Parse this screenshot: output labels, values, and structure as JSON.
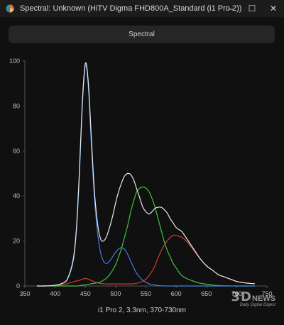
{
  "window": {
    "title": "Spectral: Unknown (HiTV Digma FHD800A_Standard (i1 Pro 2))",
    "minimize_glyph": "–",
    "maximize_glyph": "☐",
    "close_glyph": "✕"
  },
  "tab": {
    "label": "Spectral"
  },
  "watermark": {
    "logo": "3D",
    "news": "NEWS",
    "tagline": "Daily Digital Digest"
  },
  "chart_data": {
    "type": "line",
    "xlabel": "i1 Pro 2, 3.3nm, 370-730nm",
    "ylabel": "",
    "xlim": [
      350,
      750
    ],
    "ylim": [
      0,
      100
    ],
    "xticks": [
      350,
      400,
      450,
      500,
      550,
      600,
      650,
      700,
      750
    ],
    "yticks": [
      0,
      20,
      40,
      60,
      80,
      100
    ],
    "grid": false,
    "x": [
      370,
      380,
      390,
      400,
      410,
      420,
      430,
      435,
      440,
      445,
      450,
      455,
      460,
      465,
      470,
      475,
      480,
      485,
      490,
      495,
      500,
      505,
      510,
      515,
      520,
      525,
      530,
      535,
      540,
      545,
      550,
      555,
      560,
      565,
      570,
      575,
      580,
      585,
      590,
      595,
      600,
      605,
      610,
      620,
      630,
      640,
      650,
      660,
      670,
      680,
      690,
      700,
      710,
      720,
      730
    ],
    "series": [
      {
        "name": "",
        "color": "#e8e8e8",
        "values": [
          0,
          0,
          0.1,
          0.3,
          1,
          3,
          12,
          25,
          50,
          82,
          99,
          90,
          65,
          42,
          28,
          21,
          20,
          22,
          26,
          31,
          37,
          42,
          46,
          49,
          50,
          49.5,
          47,
          43,
          39,
          35,
          33,
          32,
          33,
          34.5,
          35,
          35,
          34,
          32.5,
          30,
          28,
          26,
          25,
          24,
          20,
          16,
          12,
          9,
          7,
          5,
          4,
          3,
          2,
          1.5,
          1.2,
          1
        ]
      },
      {
        "name": "",
        "color": "#3f7fe0",
        "values": [
          0,
          0,
          0.1,
          0.3,
          1,
          2.8,
          11,
          24,
          48,
          80,
          98,
          88,
          62,
          39,
          24,
          15,
          11,
          10,
          11,
          13,
          15,
          16.5,
          17,
          16.2,
          14,
          11,
          8,
          5.5,
          3.8,
          2.5,
          1.6,
          1,
          0.6,
          0.4,
          0.2,
          0.1,
          0,
          0,
          0,
          0,
          0,
          0,
          0,
          0,
          0,
          0,
          0,
          0,
          0,
          0,
          0,
          0,
          0,
          0,
          0
        ]
      },
      {
        "name": "",
        "color": "#3dc43a",
        "values": [
          0,
          0,
          0,
          0,
          0,
          0,
          0,
          0,
          0.1,
          0.3,
          0.5,
          0.7,
          1,
          1.2,
          1.4,
          1.8,
          2.6,
          3.5,
          5,
          7,
          9.5,
          13,
          17,
          22,
          27,
          33,
          38,
          42,
          43.5,
          44,
          43.5,
          42,
          39,
          35,
          30,
          25,
          20,
          16,
          13,
          10,
          8,
          6,
          4.5,
          3,
          2,
          1.2,
          0.8,
          0.4,
          0.2,
          0.1,
          0,
          0,
          0,
          0,
          0
        ]
      },
      {
        "name": "",
        "color": "#d23a32",
        "values": [
          0,
          0,
          0,
          0.1,
          0.5,
          1,
          1.8,
          2.2,
          2.5,
          3,
          3.3,
          3,
          2.4,
          1.8,
          1.4,
          1.1,
          1,
          0.9,
          0.9,
          0.9,
          0.9,
          0.9,
          0.9,
          0.9,
          0.9,
          0.9,
          1,
          1.2,
          1.6,
          2.2,
          3,
          4.5,
          6.5,
          9,
          12.5,
          15.5,
          18,
          20,
          21.5,
          22.5,
          22.5,
          22,
          21.5,
          19,
          15.5,
          12,
          9,
          7,
          5,
          4,
          3,
          2,
          1.5,
          1.2,
          1
        ]
      }
    ]
  }
}
